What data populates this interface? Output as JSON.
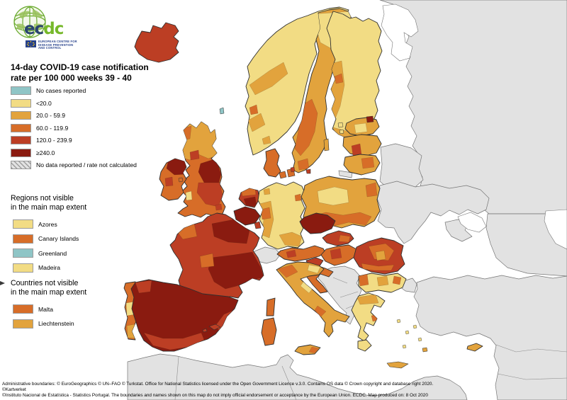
{
  "logo": {
    "acronym_ec": "ec",
    "acronym_dc": "dc",
    "org_line1": "EUROPEAN CENTRE FOR",
    "org_line2": "DISEASE PREVENTION",
    "org_line3": "AND CONTROL"
  },
  "title": {
    "line1": "14-day COVID-19 case notification",
    "line2": "rate per 100 000 weeks 39 - 40"
  },
  "colors": {
    "nocases": "#8fc5c6",
    "lt20": "#f2dc84",
    "r20": "#e2a33d",
    "r60": "#d76d28",
    "r120": "#bc3e24",
    "r240": "#8a1b10",
    "nonreporting": "#e2e2e2",
    "sea": "#ffffff"
  },
  "legend": {
    "items": [
      {
        "label": "No cases reported",
        "key": "nocases"
      },
      {
        "label": "<20.0",
        "key": "lt20"
      },
      {
        "label": "20.0 - 59.9",
        "key": "r20"
      },
      {
        "label": "60.0 - 119.9",
        "key": "r60"
      },
      {
        "label": "120.0 - 239.9",
        "key": "r120"
      },
      {
        "label": "≥240.0",
        "key": "r240"
      },
      {
        "label": "No data reported / rate not calculated",
        "key": "nodata"
      }
    ]
  },
  "insets": {
    "regions_title_line1": "Regions not visible",
    "regions_title_line2": "in the main map extent",
    "regions": [
      {
        "label": "Azores",
        "key": "lt20"
      },
      {
        "label": "Canary Islands",
        "key": "r60"
      },
      {
        "label": "Greenland",
        "key": "nocases"
      },
      {
        "label": "Madeira",
        "key": "lt20"
      }
    ],
    "countries_title_line1": "Countries not visible",
    "countries_title_line2": "in the main map extent",
    "countries": [
      {
        "label": "Malta",
        "key": "r60"
      },
      {
        "label": "Liechtenstein",
        "key": "r20"
      }
    ]
  },
  "map": {
    "regions": {
      "iceland": "r120",
      "norway": "lt20",
      "sweden": "r20",
      "finland": "lt20",
      "denmark-jutland": "r60",
      "denmark-funen": "r60",
      "denmark-zealand": "r60",
      "estonia": "r20",
      "latvia": "r20",
      "lithuania": "r20",
      "great-britain": "r60",
      "ireland": "r60",
      "isle-of-man": "r60",
      "faroe-islands": "nocases",
      "netherlands": "r120",
      "belgium": "r240",
      "luxembourg": "r120",
      "germany": "lt20",
      "poland": "r20",
      "czechia": "r240",
      "slovakia": "r120",
      "austria": "r60",
      "hungary": "r60",
      "slovenia": "r120",
      "croatia": "r60",
      "italy": "r20",
      "sicily": "r20",
      "sardinia": "r60",
      "corsica": "r60",
      "france": "r120",
      "spain": "r240",
      "balearics": "r120",
      "portugal": "r60",
      "romania": "r120",
      "bulgaria": "lt20",
      "greece": "lt20",
      "crete": "r20",
      "cyprus": "r20",
      "gotland": "r20",
      "bornholm": "r120",
      "estonian-islands": "lt20"
    }
  },
  "footer": {
    "line1": "Administrative boundaries: © EuroGeographics © UN–FAO © Turkstat. Office for National Statistics licensed under the Open Government Licence v.3.0. Contains OS data © Crown copyright and database right 2020. ©Kartverket",
    "line2": "©Instituto Nacional de Estatística - Statistics Portugal. The boundaries and names shown on this map do not imply official endorsement or acceptance by the European Union. ECDC. Map produced on: 8 Oct 2020"
  }
}
